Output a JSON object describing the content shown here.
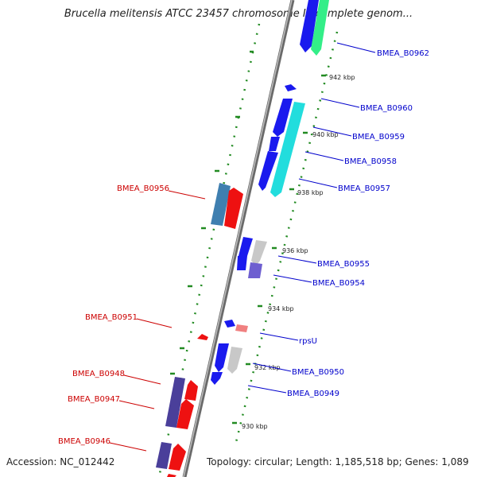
{
  "title": "Brucella melitensis ATCC 23457 chromosome II, complete genom...",
  "accession": "Accession: NC_012442",
  "topology": "Topology: circular; Length: 1,185,518 bp; Genes: 1,089",
  "colors": {
    "forward_label": "#0000cc",
    "reverse_label": "#cc0000",
    "backbone": "#888888",
    "gc_track": "#228b22",
    "blue_gene": "#1a1aee",
    "red_gene": "#ee1111",
    "cyan_gene": "#22dddd",
    "green_gene": "#33ee88",
    "grey_gene": "#c8c8c8",
    "indigo_gene": "#4a3f9a",
    "steel_gene": "#3f7fb0",
    "violet_gene": "#6e5fd0",
    "pink_gene": "#f08080"
  },
  "ticks": [
    "942 kbp",
    "940 kbp",
    "938 kbp",
    "936 kbp",
    "934 kbp",
    "932 kbp",
    "930 kbp"
  ],
  "forward_labels": [
    "BMEA_B0962",
    "BMEA_B0960",
    "BMEA_B0959",
    "BMEA_B0958",
    "BMEA_B0957",
    "BMEA_B0955",
    "BMEA_B0954",
    "rpsU",
    "BMEA_B0950",
    "BMEA_B0949"
  ],
  "reverse_labels": [
    "BMEA_B0956",
    "BMEA_B0951",
    "BMEA_B0948",
    "BMEA_B0947",
    "BMEA_B0946"
  ]
}
